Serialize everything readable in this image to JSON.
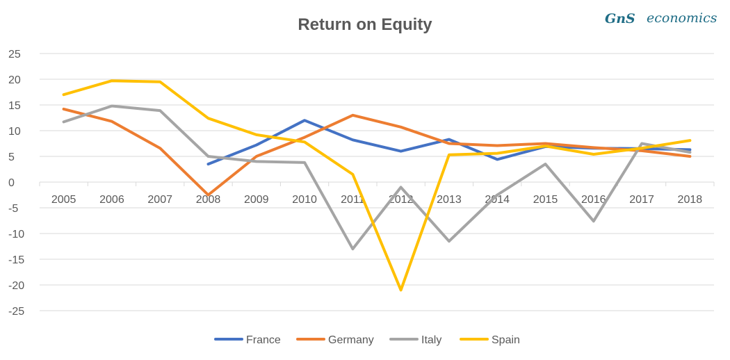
{
  "logo": {
    "mark": "GnS",
    "text": "economics",
    "color": "#1f6d86"
  },
  "chart_data": {
    "type": "line",
    "title": "Return on Equity",
    "xlabel": "",
    "ylabel": "",
    "categories": [
      "2005",
      "2006",
      "2007",
      "2008",
      "2009",
      "2010",
      "2011",
      "2012",
      "2013",
      "2014",
      "2015",
      "2016",
      "2017",
      "2018"
    ],
    "y_ticks": [
      "25",
      "20",
      "15",
      "10",
      "5",
      "0",
      "-5",
      "-10",
      "-15",
      "-20",
      "-25"
    ],
    "ylim": [
      -25,
      25
    ],
    "y_step": 5,
    "grid": true,
    "legend_position": "bottom",
    "series": [
      {
        "name": "France",
        "color": "#4472c4",
        "values": [
          null,
          null,
          null,
          3.5,
          7.2,
          12.0,
          8.2,
          6.0,
          8.3,
          4.4,
          6.9,
          6.6,
          6.5,
          6.3
        ]
      },
      {
        "name": "Germany",
        "color": "#ed7d31",
        "values": [
          14.2,
          11.8,
          6.6,
          -2.5,
          5.0,
          8.7,
          13.0,
          10.7,
          7.5,
          7.1,
          7.5,
          6.7,
          6.1,
          5.0
        ]
      },
      {
        "name": "Italy",
        "color": "#a5a5a5",
        "values": [
          11.7,
          14.8,
          13.9,
          5.0,
          4.0,
          3.8,
          -13.0,
          -1.0,
          -11.5,
          -2.5,
          3.5,
          -7.6,
          7.5,
          5.8
        ]
      },
      {
        "name": "Spain",
        "color": "#ffc000",
        "values": [
          17.0,
          19.7,
          19.5,
          12.4,
          9.2,
          7.8,
          1.5,
          -21.0,
          5.3,
          5.6,
          7.0,
          5.4,
          6.6,
          8.1
        ]
      }
    ]
  }
}
